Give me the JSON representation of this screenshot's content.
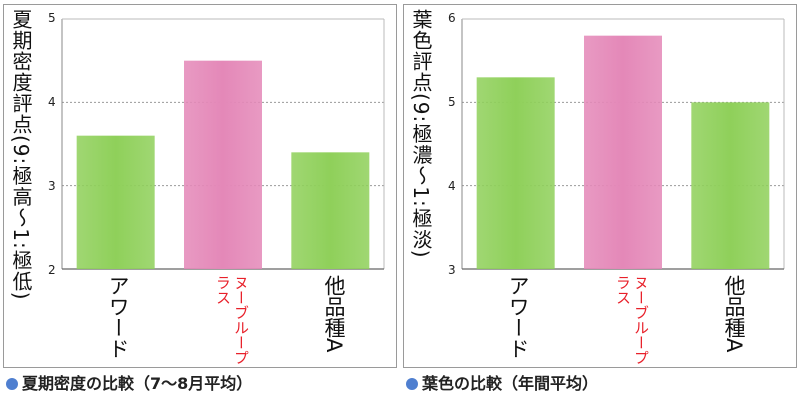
{
  "chart_data": [
    {
      "type": "bar",
      "title": "夏期密度の比較（7〜8月平均）",
      "ylabel": "夏期密度評点(9:極高〜1:極低)",
      "categories": [
        "アワード",
        "ヌーブループラス",
        "他品種A"
      ],
      "values": [
        3.6,
        4.5,
        3.4
      ],
      "ylim": [
        2,
        5
      ],
      "yticks": [
        "2",
        "3",
        "4",
        "5"
      ],
      "grid": true,
      "bar_colors": [
        "#8fd05a",
        "#e488b8",
        "#8fd05a"
      ],
      "label_colors": [
        "#111111",
        "#e8202a",
        "#111111"
      ]
    },
    {
      "type": "bar",
      "title": "葉色の比較（年間平均）",
      "ylabel": "葉色評点(9:極濃〜1:極淡)",
      "categories": [
        "アワード",
        "ヌーブループラス",
        "他品種A"
      ],
      "values": [
        5.3,
        5.8,
        5.0
      ],
      "ylim": [
        3,
        6
      ],
      "yticks": [
        "3",
        "4",
        "5",
        "6"
      ],
      "grid": true,
      "bar_colors": [
        "#8fd05a",
        "#e488b8",
        "#8fd05a"
      ],
      "label_colors": [
        "#111111",
        "#e8202a",
        "#111111"
      ]
    }
  ]
}
